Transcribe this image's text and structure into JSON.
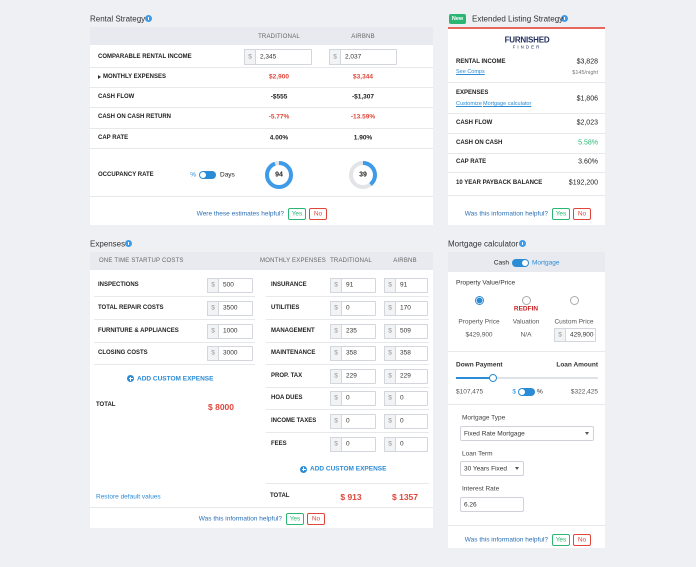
{
  "rental_strategy": {
    "title": "Rental Strategy",
    "columns": [
      "TRADITIONAL",
      "AIRBNB"
    ],
    "income": {
      "label": "COMPARABLE RENTAL INCOME",
      "currency": "$",
      "values": [
        "2,345",
        "2,037"
      ]
    },
    "rows": [
      {
        "label": "MONTHLY EXPENSES",
        "values": [
          "$2,900",
          "$3,344"
        ],
        "color": "#e0473b"
      },
      {
        "label": "CASH FLOW",
        "values": [
          "-$555",
          "-$1,307"
        ]
      },
      {
        "label": "CASH ON CASH RETURN",
        "values": [
          "-5.77%",
          "-13.59%"
        ],
        "color": "#e0473b"
      },
      {
        "label": "CAP RATE",
        "values": [
          "4.00%",
          "1.90%"
        ]
      }
    ],
    "occupancy": {
      "label": "OCCUPANCY RATE",
      "toggle": [
        "%",
        "Days"
      ],
      "values": [
        94,
        39
      ]
    },
    "feedback": {
      "question": "Were these estimates helpful?",
      "yes": "Yes",
      "no": "No"
    }
  },
  "extended_listing": {
    "badge": "New",
    "title": "Extended Listing Strategy",
    "logo": [
      "FURNISHED",
      "FINDER"
    ],
    "rows": [
      {
        "label": "RENTAL INCOME",
        "value": "$3,828",
        "links": [
          "See Comps"
        ],
        "note": "$145/night"
      },
      {
        "label": "EXPENSES",
        "value": "$1,806",
        "links": [
          "Customize",
          "Mortgage calculator"
        ]
      },
      {
        "label": "CASH FLOW",
        "value": "$2,023"
      },
      {
        "label": "CASH ON CASH",
        "value": "5.58%",
        "color": "#2bb673"
      },
      {
        "label": "CAP RATE",
        "value": "3.60%"
      },
      {
        "label": "10 YEAR PAYBACK BALANCE",
        "value": "$192,200"
      }
    ],
    "feedback": {
      "question": "Was this information helpful?",
      "yes": "Yes",
      "no": "No"
    }
  },
  "expenses": {
    "title": "Expenses",
    "startup": {
      "header": "ONE TIME STARTUP COSTS",
      "currency": "$",
      "rows": [
        [
          "INSPECTIONS",
          "500"
        ],
        [
          "TOTAL REPAIR COSTS",
          "3500"
        ],
        [
          "FURNITURE & APPLIANCES",
          "1000"
        ],
        [
          "CLOSING COSTS",
          "3000"
        ]
      ],
      "add": "ADD CUSTOM EXPENSE",
      "total_label": "TOTAL",
      "total": "$ 8000",
      "restore": "Restore default values"
    },
    "monthly": {
      "headers": [
        "MONTHLY EXPENSES",
        "TRADITIONAL",
        "AIRBNB"
      ],
      "currency": "$",
      "rows": [
        [
          "INSURANCE",
          "91",
          "91"
        ],
        [
          "UTILITIES",
          "0",
          "170"
        ],
        [
          "MANAGEMENT",
          "235",
          "509"
        ],
        [
          "MAINTENANCE",
          "358",
          "358"
        ],
        [
          "PROP. TAX",
          "229",
          "229"
        ],
        [
          "HOA DUES",
          "0",
          "0"
        ],
        [
          "INCOME TAXES",
          "0",
          "0"
        ],
        [
          "FEES",
          "0",
          "0"
        ]
      ],
      "add": "ADD CUSTOM EXPENSE",
      "total_label": "TOTAL",
      "totals": [
        "$ 913",
        "$ 1357"
      ]
    },
    "feedback": {
      "question": "Was this information helpful?",
      "yes": "Yes",
      "no": "No"
    }
  },
  "mortgage": {
    "title": "Mortgage calculator",
    "toggle": [
      "Cash",
      "Mortgage"
    ],
    "property_label": "Property Value/Price",
    "options": [
      {
        "label": "Property Price",
        "value": "$429,900"
      },
      {
        "logo": "REDFIN",
        "label": "Valuation",
        "value": "N/A"
      },
      {
        "label": "Custom Price",
        "currency": "$",
        "value": "429,900"
      }
    ],
    "down_payment": {
      "label": "Down Payment",
      "value": "$107,475",
      "toggle": [
        "$",
        "%"
      ]
    },
    "loan_amount": {
      "label": "Loan Amount",
      "value": "$322,425"
    },
    "fields": [
      {
        "label": "Mortgage Type",
        "value": "Fixed Rate Mortgage"
      },
      {
        "label": "Loan Term",
        "value": "30 Years Fixed"
      },
      {
        "label": "Interest Rate",
        "value": "6.26"
      }
    ],
    "feedback": {
      "question": "Was this information helpful?",
      "yes": "Yes",
      "no": "No"
    }
  }
}
